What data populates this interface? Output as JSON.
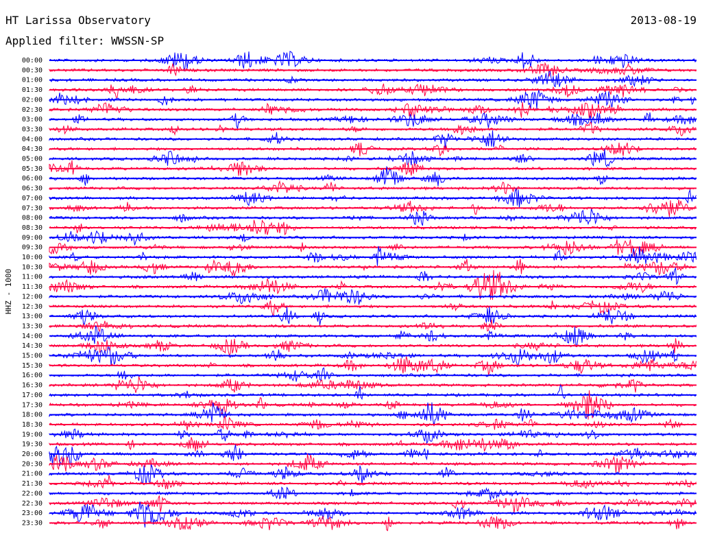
{
  "header": {
    "station": "HT Larissa Observatory",
    "date": "2013-08-19",
    "filter": "Applied filter: WWSSN-SP"
  },
  "chart_data": {
    "type": "line",
    "title": "HT Larissa Observatory",
    "ylabel": "HHZ - 1000",
    "row_labels": [
      "00:00",
      "00:30",
      "01:00",
      "01:30",
      "02:00",
      "02:30",
      "03:00",
      "03:30",
      "04:00",
      "04:30",
      "05:00",
      "05:30",
      "06:00",
      "06:30",
      "07:00",
      "07:30",
      "08:00",
      "08:30",
      "09:00",
      "09:30",
      "10:00",
      "10:30",
      "11:00",
      "11:30",
      "12:00",
      "12:30",
      "13:00",
      "13:30",
      "14:00",
      "14:30",
      "15:00",
      "15:30",
      "16:00",
      "16:30",
      "17:00",
      "17:30",
      "18:00",
      "18:30",
      "19:00",
      "19:30",
      "20:00",
      "20:30",
      "21:00",
      "21:30",
      "22:00",
      "22:30",
      "23:00",
      "23:30"
    ],
    "colors": [
      "#0000ff",
      "#ff0040"
    ]
  }
}
